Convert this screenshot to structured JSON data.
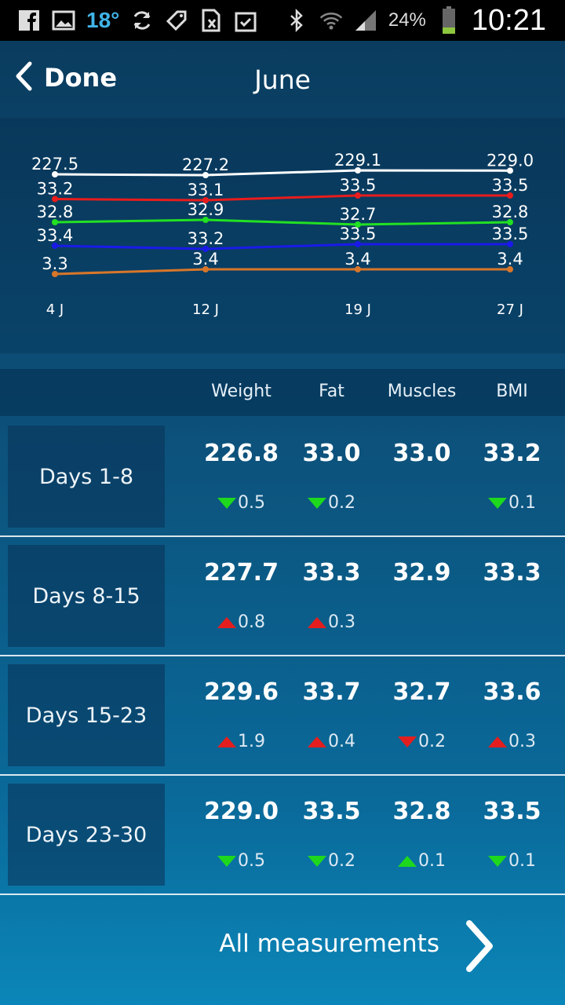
{
  "status_bar": {
    "temperature": "18°",
    "battery_percent": "24%",
    "time": "10:21",
    "left_icons": [
      "facebook-icon",
      "image-icon",
      "sync-icon",
      "tag-icon",
      "no-sim-icon",
      "clipboard-check-icon"
    ],
    "right_icons": [
      "bluetooth-icon",
      "wifi-icon",
      "signal-icon",
      "battery-icon"
    ]
  },
  "header": {
    "back_label": "Done",
    "title": "June"
  },
  "chart_data": {
    "type": "line",
    "categories": [
      "4 J",
      "12 J",
      "19 J",
      "27 J"
    ],
    "series": [
      {
        "color": "#ffffff",
        "values": [
          227.5,
          227.2,
          229.1,
          229.0
        ],
        "labels": [
          "227.5",
          "227.2",
          "229.1",
          "229.0"
        ]
      },
      {
        "color": "#e81c1c",
        "values": [
          33.2,
          33.1,
          33.5,
          33.5
        ],
        "labels": [
          "33.2",
          "33.1",
          "33.5",
          "33.5"
        ]
      },
      {
        "color": "#22e022",
        "values": [
          32.8,
          32.9,
          32.7,
          32.8
        ],
        "labels": [
          "32.8",
          "32.9",
          "32.7",
          "32.8"
        ]
      },
      {
        "color": "#1a1ae8",
        "values": [
          33.4,
          33.2,
          33.5,
          33.5
        ],
        "labels": [
          "33.4",
          "33.2",
          "33.5",
          "33.5"
        ]
      },
      {
        "color": "#d8762a",
        "values": [
          3.3,
          3.4,
          3.4,
          3.4
        ],
        "labels": [
          "3.3",
          "3.4",
          "3.4",
          "3.4"
        ]
      }
    ]
  },
  "table": {
    "columns": [
      "Weight",
      "Fat",
      "Muscles",
      "BMI"
    ],
    "rows": [
      {
        "label": "Days 1-8",
        "values": [
          "226.8",
          "33.0",
          "33.0",
          "33.2"
        ],
        "deltas": [
          {
            "dir": "down-green",
            "value": "0.5"
          },
          {
            "dir": "down-green",
            "value": "0.2"
          },
          null,
          {
            "dir": "down-green",
            "value": "0.1"
          }
        ]
      },
      {
        "label": "Days 8-15",
        "values": [
          "227.7",
          "33.3",
          "32.9",
          "33.3"
        ],
        "deltas": [
          {
            "dir": "up-red",
            "value": "0.8"
          },
          {
            "dir": "up-red",
            "value": "0.3"
          },
          null,
          null
        ]
      },
      {
        "label": "Days 15-23",
        "values": [
          "229.6",
          "33.7",
          "32.7",
          "33.6"
        ],
        "deltas": [
          {
            "dir": "up-red",
            "value": "1.9"
          },
          {
            "dir": "up-red",
            "value": "0.4"
          },
          {
            "dir": "down-red",
            "value": "0.2"
          },
          {
            "dir": "up-red",
            "value": "0.3"
          }
        ]
      },
      {
        "label": "Days 23-30",
        "values": [
          "229.0",
          "33.5",
          "32.8",
          "33.5"
        ],
        "deltas": [
          {
            "dir": "down-green",
            "value": "0.5"
          },
          {
            "dir": "down-green",
            "value": "0.2"
          },
          {
            "dir": "up-green",
            "value": "0.1"
          },
          {
            "dir": "down-green",
            "value": "0.1"
          }
        ]
      }
    ]
  },
  "footer": {
    "label": "All measurements"
  }
}
